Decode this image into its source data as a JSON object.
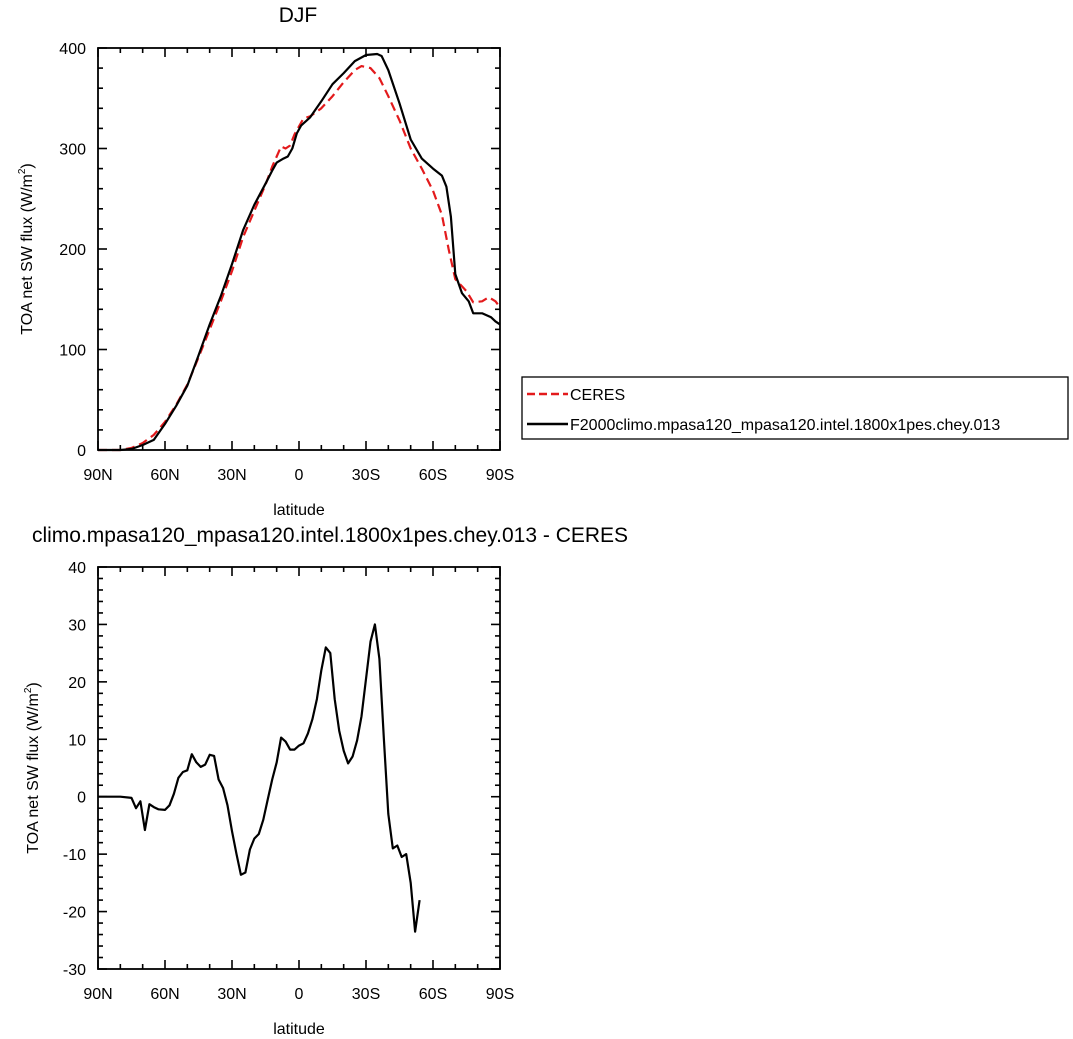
{
  "chart_data": [
    {
      "type": "line",
      "title": "DJF",
      "xlabel": "latitude",
      "ylabel": "TOA net SW flux (W/m",
      "ylabel_sup": "2",
      "ylabel_close": ")",
      "xlim": [
        -90,
        90
      ],
      "ylim": [
        0,
        400
      ],
      "x_ticks": [
        {
          "value": -90,
          "label": "90N"
        },
        {
          "value": -60,
          "label": "60N"
        },
        {
          "value": -30,
          "label": "30N"
        },
        {
          "value": 0,
          "label": "0"
        },
        {
          "value": 30,
          "label": "30S"
        },
        {
          "value": 60,
          "label": "60S"
        },
        {
          "value": 90,
          "label": "90S"
        }
      ],
      "y_ticks": [
        {
          "value": 0,
          "label": "0"
        },
        {
          "value": 100,
          "label": "100"
        },
        {
          "value": 200,
          "label": "200"
        },
        {
          "value": 300,
          "label": "300"
        },
        {
          "value": 400,
          "label": "400"
        }
      ],
      "grid": false,
      "legend_placement": "right",
      "series": [
        {
          "name": "CERES",
          "color": "#e31a1c",
          "dash": true,
          "points": [
            [
              -90,
              0
            ],
            [
              -80,
              0
            ],
            [
              -75,
              2
            ],
            [
              -70,
              7
            ],
            [
              -65,
              15
            ],
            [
              -60,
              28
            ],
            [
              -55,
              45
            ],
            [
              -50,
              65
            ],
            [
              -45,
              92
            ],
            [
              -40,
              120
            ],
            [
              -35,
              148
            ],
            [
              -30,
              178
            ],
            [
              -25,
              212
            ],
            [
              -20,
              238
            ],
            [
              -15,
              264
            ],
            [
              -12,
              282
            ],
            [
              -10,
              292
            ],
            [
              -8,
              302
            ],
            [
              -6,
              300
            ],
            [
              -4,
              303
            ],
            [
              -2,
              314
            ],
            [
              0,
              322
            ],
            [
              2,
              330
            ],
            [
              5,
              332
            ],
            [
              10,
              340
            ],
            [
              15,
              352
            ],
            [
              20,
              366
            ],
            [
              25,
              378
            ],
            [
              28,
              382
            ],
            [
              32,
              380
            ],
            [
              36,
              370
            ],
            [
              40,
              352
            ],
            [
              45,
              328
            ],
            [
              50,
              300
            ],
            [
              55,
              280
            ],
            [
              60,
              258
            ],
            [
              64,
              234
            ],
            [
              67,
              200
            ],
            [
              70,
              170
            ],
            [
              75,
              158
            ],
            [
              78,
              147
            ],
            [
              82,
              148
            ],
            [
              85,
              152
            ],
            [
              88,
              148
            ],
            [
              90,
              142
            ]
          ]
        },
        {
          "name": "F2000climo.mpasa120_mpasa120.intel.1800x1pes.chey.013",
          "color": "#000000",
          "dash": false,
          "points": [
            [
              -90,
              0
            ],
            [
              -80,
              0
            ],
            [
              -75,
              1
            ],
            [
              -70,
              5
            ],
            [
              -65,
              10
            ],
            [
              -60,
              26
            ],
            [
              -55,
              44
            ],
            [
              -50,
              64
            ],
            [
              -45,
              94
            ],
            [
              -40,
              125
            ],
            [
              -35,
              153
            ],
            [
              -30,
              185
            ],
            [
              -25,
              219
            ],
            [
              -20,
              244
            ],
            [
              -15,
              265
            ],
            [
              -12,
              278
            ],
            [
              -10,
              286
            ],
            [
              -7,
              290
            ],
            [
              -5,
              292
            ],
            [
              -3,
              300
            ],
            [
              -1,
              315
            ],
            [
              1,
              323
            ],
            [
              5,
              331
            ],
            [
              10,
              347
            ],
            [
              15,
              364
            ],
            [
              20,
              375
            ],
            [
              25,
              387
            ],
            [
              30,
              393
            ],
            [
              35,
              394
            ],
            [
              37,
              392
            ],
            [
              40,
              378
            ],
            [
              45,
              345
            ],
            [
              50,
              309
            ],
            [
              55,
              290
            ],
            [
              60,
              280
            ],
            [
              64,
              273
            ],
            [
              66,
              262
            ],
            [
              68,
              232
            ],
            [
              70,
              175
            ],
            [
              73,
              156
            ],
            [
              76,
              148
            ],
            [
              78,
              136
            ],
            [
              82,
              136
            ],
            [
              86,
              132
            ],
            [
              88,
              128
            ],
            [
              90,
              125
            ]
          ]
        }
      ]
    },
    {
      "type": "line",
      "title": "climo.mpasa120_mpasa120.intel.1800x1pes.chey.013 - CERES",
      "xlabel": "latitude",
      "ylabel": "TOA net SW flux (W/m",
      "ylabel_sup": "2",
      "ylabel_close": ")",
      "xlim": [
        -90,
        90
      ],
      "ylim": [
        -30,
        40
      ],
      "x_ticks": [
        {
          "value": -90,
          "label": "90N"
        },
        {
          "value": -60,
          "label": "60N"
        },
        {
          "value": -30,
          "label": "30N"
        },
        {
          "value": 0,
          "label": "0"
        },
        {
          "value": 30,
          "label": "30S"
        },
        {
          "value": 60,
          "label": "60S"
        },
        {
          "value": 90,
          "label": "90S"
        }
      ],
      "y_ticks": [
        {
          "value": -30,
          "label": "-30"
        },
        {
          "value": -20,
          "label": "-20"
        },
        {
          "value": -10,
          "label": "-10"
        },
        {
          "value": 0,
          "label": "0"
        },
        {
          "value": 10,
          "label": "10"
        },
        {
          "value": 20,
          "label": "20"
        },
        {
          "value": 30,
          "label": "30"
        },
        {
          "value": 40,
          "label": "40"
        }
      ],
      "grid": false,
      "series": [
        {
          "color": "#000000",
          "dash": false,
          "points": [
            [
              -90,
              0
            ],
            [
              -80,
              0
            ],
            [
              -75,
              -0.2
            ],
            [
              -73,
              -2
            ],
            [
              -71,
              -0.8
            ],
            [
              -69,
              -5.8
            ],
            [
              -67,
              -1.3
            ],
            [
              -65,
              -1.8
            ],
            [
              -63,
              -2.2
            ],
            [
              -60,
              -2.3
            ],
            [
              -58,
              -1.5
            ],
            [
              -56,
              0.5
            ],
            [
              -54,
              3.3
            ],
            [
              -52,
              4.3
            ],
            [
              -50,
              4.6
            ],
            [
              -48,
              7.4
            ],
            [
              -46,
              6.0
            ],
            [
              -44,
              5.2
            ],
            [
              -42,
              5.6
            ],
            [
              -40,
              7.3
            ],
            [
              -38,
              7.1
            ],
            [
              -36,
              3.0
            ],
            [
              -34,
              1.5
            ],
            [
              -32,
              -1.5
            ],
            [
              -30,
              -6
            ],
            [
              -28,
              -10
            ],
            [
              -26,
              -13.6
            ],
            [
              -24,
              -13.2
            ],
            [
              -22,
              -9.2
            ],
            [
              -20,
              -7.3
            ],
            [
              -18,
              -6.5
            ],
            [
              -16,
              -4
            ],
            [
              -14,
              -0.5
            ],
            [
              -12,
              3
            ],
            [
              -10,
              6
            ],
            [
              -8,
              10.3
            ],
            [
              -6,
              9.6
            ],
            [
              -4,
              8.2
            ],
            [
              -2,
              8.2
            ],
            [
              0,
              8.9
            ],
            [
              2,
              9.3
            ],
            [
              4,
              11
            ],
            [
              6,
              13.5
            ],
            [
              8,
              17
            ],
            [
              10,
              22
            ],
            [
              12,
              26
            ],
            [
              14,
              25
            ],
            [
              16,
              17
            ],
            [
              18,
              11.5
            ],
            [
              20,
              8
            ],
            [
              22,
              5.8
            ],
            [
              24,
              7
            ],
            [
              26,
              9.8
            ],
            [
              28,
              14
            ],
            [
              30,
              20.5
            ],
            [
              32,
              27
            ],
            [
              34,
              30
            ],
            [
              36,
              24
            ],
            [
              38,
              10
            ],
            [
              40,
              -3
            ],
            [
              42,
              -9
            ],
            [
              44,
              -8.5
            ],
            [
              46,
              -10.5
            ],
            [
              48,
              -10
            ],
            [
              50,
              -15
            ],
            [
              52,
              -23.5
            ],
            [
              54,
              -18
            ]
          ]
        }
      ]
    }
  ]
}
